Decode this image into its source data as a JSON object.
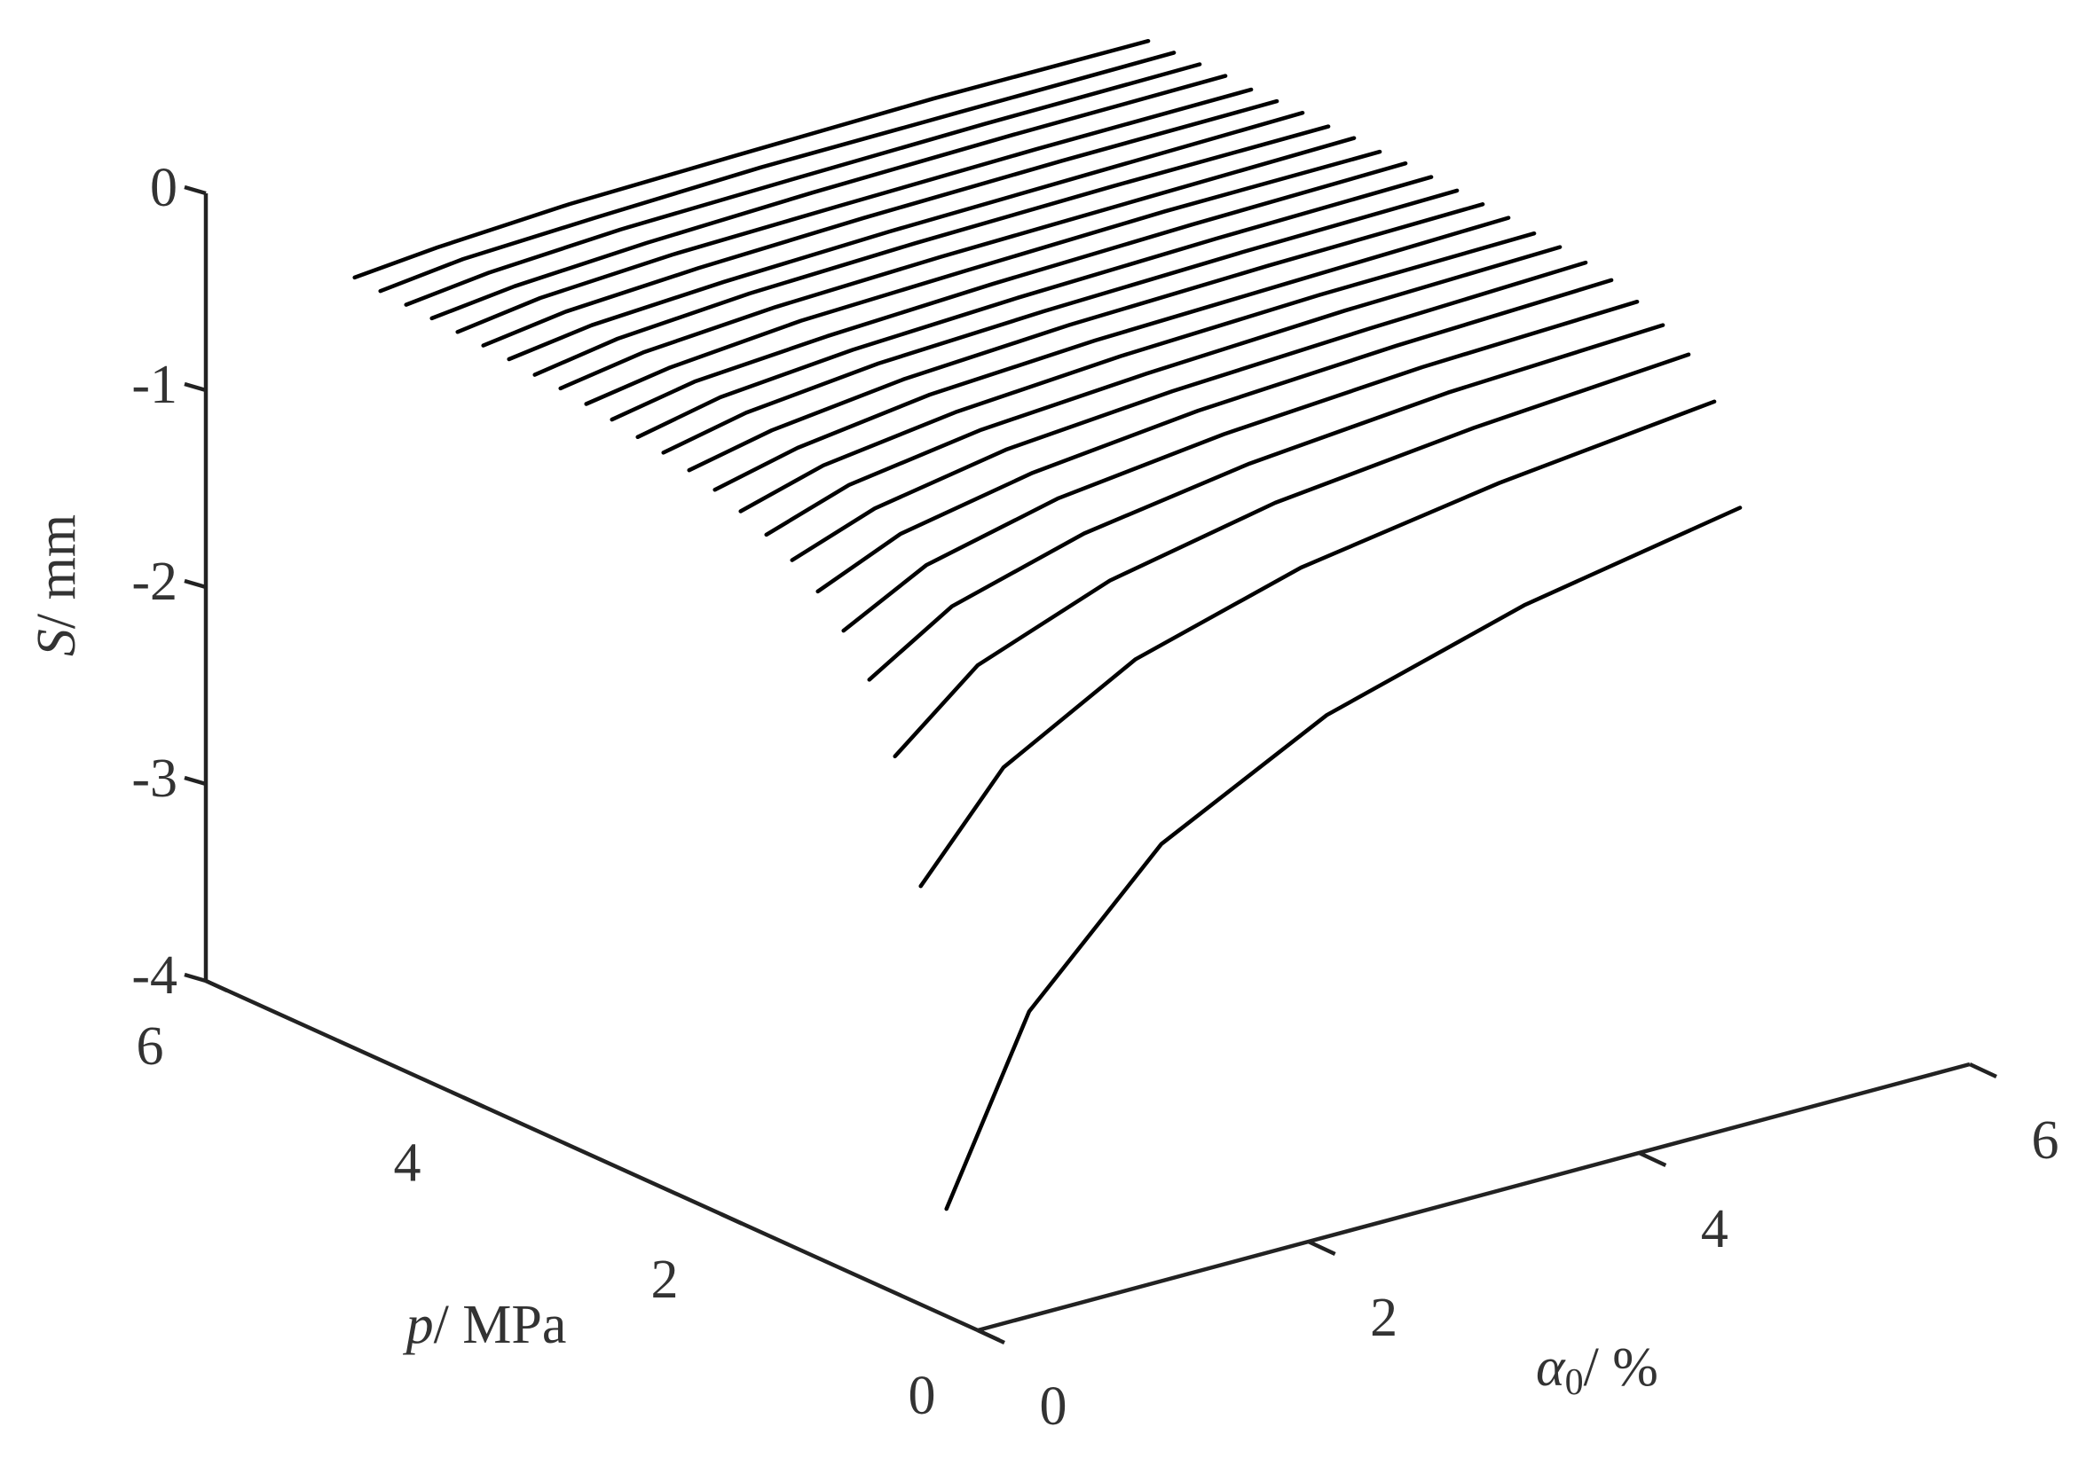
{
  "chart_data": {
    "type": "line3d",
    "xlabel": [
      "α",
      "0",
      "/ %"
    ],
    "ylabel": [
      "p",
      "/ MPa"
    ],
    "zlabel": [
      "S",
      "/ mm"
    ],
    "xlim": [
      0,
      6
    ],
    "xticks": [
      0,
      2,
      4,
      6
    ],
    "ylim": [
      0,
      6
    ],
    "yticks": [
      0,
      2,
      4,
      6
    ],
    "zlim": [
      -4,
      0
    ],
    "zticks": [
      -4,
      -3,
      -2,
      -1,
      0
    ],
    "color": "#000000",
    "x": [
      0.9,
      1.4,
      2.2,
      3.2,
      4.4,
      5.7
    ],
    "series": [
      {
        "y": 1.4,
        "values": [
          -4.0,
          -3.11,
          -2.44,
          -2.01,
          -1.72,
          -1.52
        ]
      },
      {
        "y": 1.6,
        "values": [
          -2.42,
          -1.93,
          -1.56,
          -1.32,
          -1.16,
          -1.04
        ]
      },
      {
        "y": 1.8,
        "values": [
          -1.82,
          -1.47,
          -1.22,
          -1.05,
          -0.94,
          -0.86
        ]
      },
      {
        "y": 2.0,
        "values": [
          -1.49,
          -1.23,
          -1.04,
          -0.91,
          -0.82,
          -0.77
        ]
      },
      {
        "y": 2.2,
        "values": [
          -1.3,
          -1.08,
          -0.92,
          -0.82,
          -0.75,
          -0.71
        ]
      },
      {
        "y": 2.4,
        "values": [
          -1.16,
          -0.98,
          -0.85,
          -0.76,
          -0.7,
          -0.66
        ]
      },
      {
        "y": 2.6,
        "values": [
          -1.06,
          -0.91,
          -0.79,
          -0.72,
          -0.67,
          -0.63
        ]
      },
      {
        "y": 2.8,
        "values": [
          -0.99,
          -0.85,
          -0.75,
          -0.69,
          -0.64,
          -0.61
        ]
      },
      {
        "y": 3.0,
        "values": [
          -0.93,
          -0.81,
          -0.72,
          -0.66,
          -0.62,
          -0.6
        ]
      },
      {
        "y": 3.2,
        "values": [
          -0.88,
          -0.78,
          -0.69,
          -0.64,
          -0.61,
          -0.58
        ]
      },
      {
        "y": 3.4,
        "values": [
          -0.84,
          -0.75,
          -0.67,
          -0.62,
          -0.59,
          -0.57
        ]
      },
      {
        "y": 3.6,
        "values": [
          -0.81,
          -0.72,
          -0.65,
          -0.61,
          -0.58,
          -0.56
        ]
      },
      {
        "y": 3.8,
        "values": [
          -0.79,
          -0.7,
          -0.64,
          -0.6,
          -0.57,
          -0.55
        ]
      },
      {
        "y": 4.0,
        "values": [
          -0.76,
          -0.68,
          -0.63,
          -0.59,
          -0.56,
          -0.54
        ]
      },
      {
        "y": 4.2,
        "values": [
          -0.74,
          -0.67,
          -0.61,
          -0.58,
          -0.55,
          -0.54
        ]
      },
      {
        "y": 4.4,
        "values": [
          -0.72,
          -0.65,
          -0.6,
          -0.57,
          -0.55,
          -0.53
        ]
      },
      {
        "y": 4.6,
        "values": [
          -0.71,
          -0.64,
          -0.59,
          -0.56,
          -0.54,
          -0.53
        ]
      },
      {
        "y": 4.8,
        "values": [
          -0.69,
          -0.63,
          -0.59,
          -0.56,
          -0.54,
          -0.52
        ]
      },
      {
        "y": 5.0,
        "values": [
          -0.68,
          -0.62,
          -0.58,
          -0.55,
          -0.53,
          -0.52
        ]
      },
      {
        "y": 5.2,
        "values": [
          -0.67,
          -0.61,
          -0.57,
          -0.55,
          -0.53,
          -0.52
        ]
      },
      {
        "y": 5.4,
        "values": [
          -0.66,
          -0.61,
          -0.57,
          -0.54,
          -0.52,
          -0.51
        ]
      },
      {
        "y": 5.6,
        "values": [
          -0.65,
          -0.6,
          -0.56,
          -0.54,
          -0.52,
          -0.51
        ]
      },
      {
        "y": 5.8,
        "values": [
          -0.64,
          -0.59,
          -0.56,
          -0.53,
          -0.52,
          -0.51
        ]
      },
      {
        "y": 6.0,
        "values": [
          -0.63,
          -0.59,
          -0.55,
          -0.53,
          -0.51,
          -0.51
        ]
      }
    ]
  }
}
